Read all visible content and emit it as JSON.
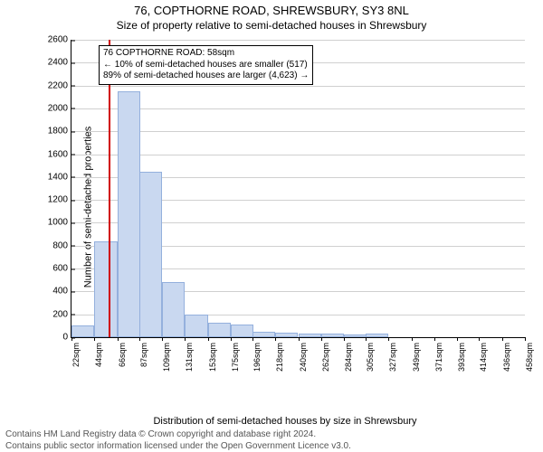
{
  "titles": {
    "line1": "76, COPTHORNE ROAD, SHREWSBURY, SY3 8NL",
    "line2": "Size of property relative to semi-detached houses in Shrewsbury"
  },
  "axes": {
    "ylabel": "Number of semi-detached properties",
    "xlabel": "Distribution of semi-detached houses by size in Shrewsbury",
    "ymax": 2600,
    "ytick_step": 200,
    "yticks": [
      0,
      200,
      400,
      600,
      800,
      1000,
      1200,
      1400,
      1600,
      1800,
      2000,
      2200,
      2400,
      2600
    ],
    "xmin": 22,
    "xmax": 458,
    "xtick_step": 22,
    "xtick_suffix": "sqm",
    "xticks": [
      22,
      44,
      66,
      87,
      109,
      131,
      153,
      175,
      196,
      218,
      240,
      262,
      284,
      305,
      327,
      349,
      371,
      393,
      414,
      436,
      458
    ]
  },
  "style": {
    "bar_fill": "#c9d8f0",
    "bar_stroke": "#94b0dd",
    "grid_color": "#d0d0d0",
    "marker_color": "#d00000",
    "background": "#ffffff",
    "font_family": "Arial, Helvetica, sans-serif",
    "title_fontsize": 13,
    "subtitle_fontsize": 12,
    "axis_label_fontsize": 11,
    "tick_fontsize": 10,
    "xtick_fontsize": 9,
    "footer_fontsize": 10,
    "footer_color": "#555555",
    "bin_width_sqm": 22
  },
  "hist": {
    "bin_starts": [
      22,
      44,
      66,
      87,
      109,
      131,
      153,
      175,
      196,
      218,
      240,
      262,
      284,
      305
    ],
    "counts": [
      100,
      840,
      2150,
      1450,
      480,
      200,
      130,
      110,
      50,
      40,
      30,
      30,
      25,
      30
    ]
  },
  "marker": {
    "value_sqm": 58
  },
  "annotation": {
    "line1": "76 COPTHORNE ROAD: 58sqm",
    "line2": "← 10% of semi-detached houses are smaller (517)",
    "line3": "89% of semi-detached houses are larger (4,623) →"
  },
  "footer": {
    "line1": "Contains HM Land Registry data © Crown copyright and database right 2024.",
    "line2": "Contains public sector information licensed under the Open Government Licence v3.0."
  }
}
